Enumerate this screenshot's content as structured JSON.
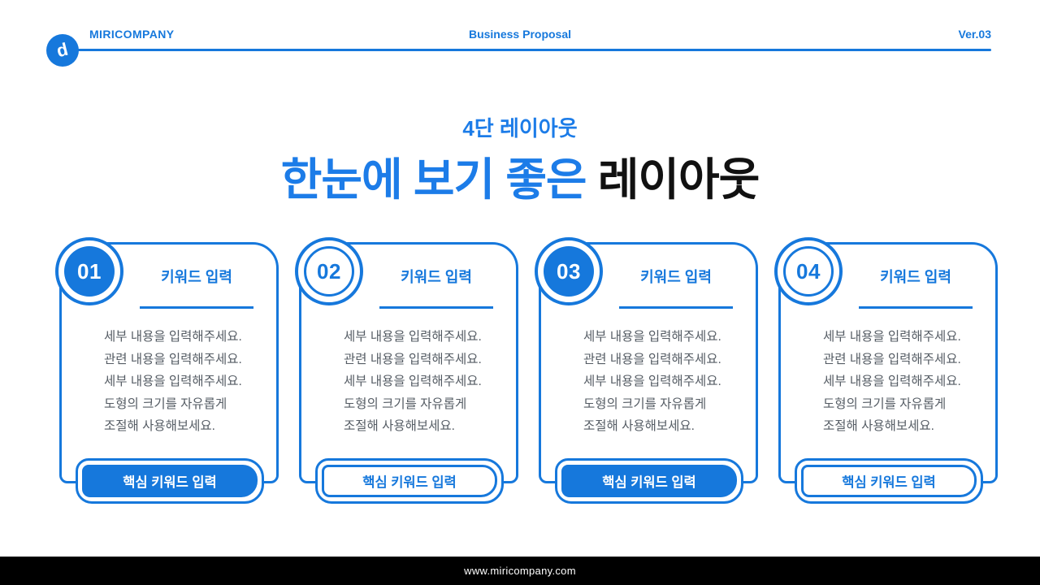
{
  "colors": {
    "primary": "#1678DC",
    "title_blue": "#1C7CE8",
    "body_gray": "#555C64",
    "footer_bg": "#000000",
    "bg": "#FFFFFF"
  },
  "header": {
    "logo_glyph": "d",
    "company": "MIRICOMPANY",
    "doc_type": "Business Proposal",
    "version": "Ver.03"
  },
  "title": {
    "subtitle": "4단 레이아웃",
    "highlight": "한눈에 보기 좋은 ",
    "rest": "레이아웃"
  },
  "cards": [
    {
      "number": "01",
      "variant": "filled",
      "keyword_label": "키워드 입력",
      "body_lines": [
        "세부 내용을 입력해주세요.",
        "관련 내용을 입력해주세요.",
        "세부 내용을 입력해주세요.",
        "도형의 크기를 자유롭게",
        "조절해 사용해보세요."
      ],
      "cta": "핵심 키워드 입력"
    },
    {
      "number": "02",
      "variant": "outline",
      "keyword_label": "키워드 입력",
      "body_lines": [
        "세부 내용을 입력해주세요.",
        "관련 내용을 입력해주세요.",
        "세부 내용을 입력해주세요.",
        "도형의 크기를 자유롭게",
        "조절해 사용해보세요."
      ],
      "cta": "핵심 키워드 입력"
    },
    {
      "number": "03",
      "variant": "filled",
      "keyword_label": "키워드 입력",
      "body_lines": [
        "세부 내용을 입력해주세요.",
        "관련 내용을 입력해주세요.",
        "세부 내용을 입력해주세요.",
        "도형의 크기를 자유롭게",
        "조절해 사용해보세요."
      ],
      "cta": "핵심 키워드 입력"
    },
    {
      "number": "04",
      "variant": "outline",
      "keyword_label": "키워드 입력",
      "body_lines": [
        "세부 내용을 입력해주세요.",
        "관련 내용을 입력해주세요.",
        "세부 내용을 입력해주세요.",
        "도형의 크기를 자유롭게",
        "조절해 사용해보세요."
      ],
      "cta": "핵심 키워드 입력"
    }
  ],
  "footer": {
    "url": "www.miricompany.com"
  }
}
